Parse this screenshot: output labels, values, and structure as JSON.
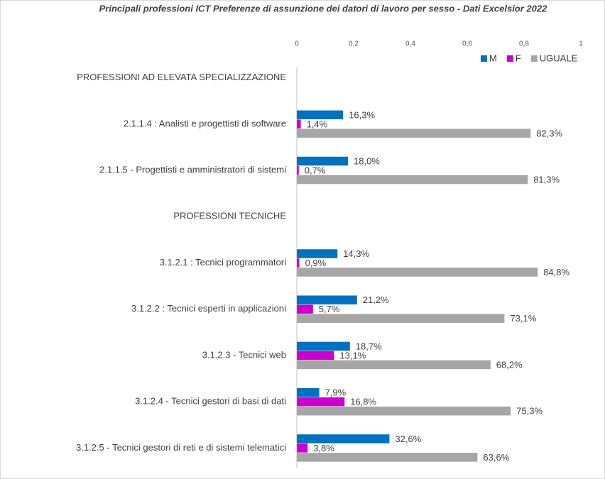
{
  "chart_data": {
    "type": "hbar",
    "title": "Principali professioni  ICT Preferenze di assunzione  dei datori di lavoro per sesso - Dati Excelsior 2022",
    "categories": [
      "PROFESSIONI AD ELEVATA SPECIALIZZAZIONE",
      "2.1.1.4 : Analisti e progettisti di software",
      "2.1.1.5 - Progettisti e amministratori di sistemi",
      "PROFESSIONI TECNICHE",
      "3.1.2.1 : Tecnici programmatori",
      "3.1.2.2 : Tecnici esperti in applicazioni",
      "3.1.2.3 - Tecnici web",
      "3.1.2.4 - Tecnici gestori di basi di dati",
      "3.1.2.5 - Tecnici gestori di reti e di sistemi telematici"
    ],
    "series": [
      {
        "name": "M",
        "color": "#0070c0",
        "values": [
          null,
          0.163,
          0.18,
          null,
          0.143,
          0.212,
          0.187,
          0.079,
          0.326
        ],
        "value_labels": [
          null,
          "16,3%",
          "18,0%",
          null,
          "14,3%",
          "21,2%",
          "18,7%",
          "7,9%",
          "32,6%"
        ]
      },
      {
        "name": "F",
        "color": "#cc00cc",
        "values": [
          null,
          0.014,
          0.007,
          null,
          0.009,
          0.057,
          0.131,
          0.168,
          0.038
        ],
        "value_labels": [
          null,
          "1,4%",
          "0,7%",
          null,
          "0,9%",
          "5,7%",
          "13,1%",
          "16,8%",
          "3,8%"
        ]
      },
      {
        "name": "UGUALE",
        "color": "#a6a6a6",
        "values": [
          null,
          0.823,
          0.813,
          null,
          0.848,
          0.731,
          0.682,
          0.753,
          0.636
        ],
        "value_labels": [
          null,
          "82,3%",
          "81,3%",
          null,
          "84,8%",
          "73,1%",
          "68,2%",
          "75,3%",
          "63,6%"
        ]
      }
    ],
    "xlim": [
      0,
      1
    ],
    "xticks": [
      0,
      {
        "value": 0.2,
        "label": "0,2"
      },
      {
        "value": 0.4,
        "label": "0,4"
      },
      {
        "value": 0.6,
        "label": "0,6"
      },
      {
        "value": 0.8,
        "label": "0,8"
      },
      1
    ],
    "legend": "top-right"
  }
}
